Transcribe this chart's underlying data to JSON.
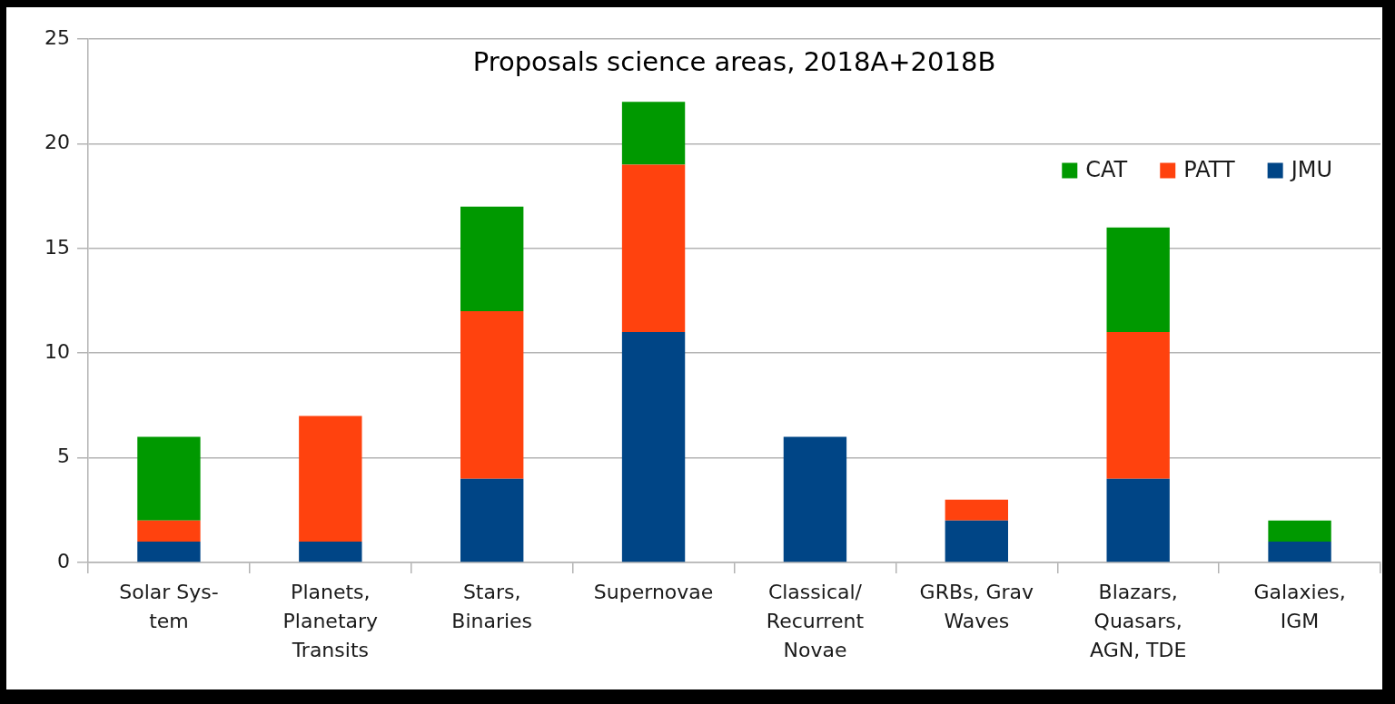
{
  "chart_data": {
    "type": "bar",
    "title": "Proposals science areas, 2018A+2018B",
    "categories": [
      "Solar Sys-\ntem",
      "Planets,\nPlanetary\nTransits",
      "Stars,\nBinaries",
      "Supernovae",
      "Classical/\nRecurrent\nNovae",
      "GRBs, Grav\nWaves",
      "Blazars,\nQuasars,\nAGN, TDE",
      "Galaxies,\nIGM"
    ],
    "series": [
      {
        "name": "JMU",
        "color": "#004586",
        "values": [
          1,
          1,
          4,
          11,
          6,
          2,
          4,
          1
        ]
      },
      {
        "name": "PATT",
        "color": "#ff420e",
        "values": [
          1,
          6,
          8,
          8,
          0,
          1,
          7,
          0
        ]
      },
      {
        "name": "CAT",
        "color": "#009900",
        "values": [
          4,
          0,
          5,
          3,
          0,
          0,
          5,
          1
        ]
      }
    ],
    "stacked": true,
    "ylim": [
      0,
      25
    ],
    "yticks": [
      0,
      5,
      10,
      15,
      20,
      25
    ],
    "grid": "y",
    "legend": "top right"
  }
}
